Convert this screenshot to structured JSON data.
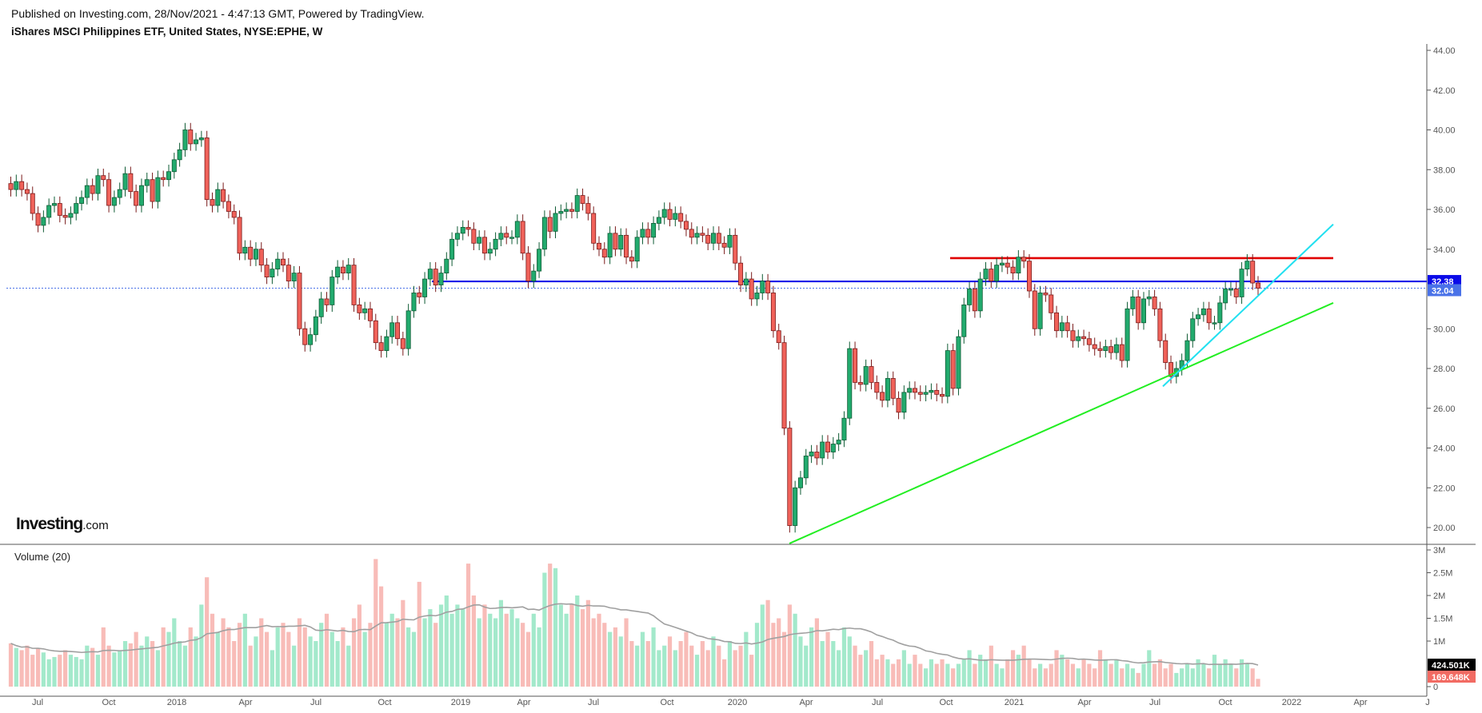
{
  "header": {
    "published": "Published on Investing.com, 28/Nov/2021 - 4:47:13 GMT, Powered by TradingView.",
    "title": "iShares MSCI Philippines ETF, United States, NYSE:EPHE, W"
  },
  "logo": {
    "main": "Investing",
    "suffix": ".com"
  },
  "volume_label": "Volume (20)",
  "colors": {
    "up": "#22ab6e",
    "down": "#f0625a",
    "vol_up": "#a3e9cb",
    "vol_down": "#f8bcb8",
    "ma": "#a0a0a0",
    "resistance": "#e00000",
    "support_level": "#1010e8",
    "trend_long": "#22ee22",
    "trend_short": "#22e0f0",
    "last_price": "#4a72e8"
  },
  "chart_data": [
    {
      "type": "candlestick",
      "title": "iShares MSCI Philippines ETF, United States, NYSE:EPHE, W",
      "ylim": [
        19,
        45
      ],
      "y_ticks": [
        "44.00",
        "42.00",
        "40.00",
        "38.00",
        "36.00",
        "34.00",
        "30.00",
        "28.00",
        "26.00",
        "24.00",
        "22.00",
        "20.00"
      ],
      "x_ticks": [
        "Jul",
        "Oct",
        "2018",
        "Apr",
        "Jul",
        "Oct",
        "2019",
        "Apr",
        "Jul",
        "Oct",
        "2020",
        "Apr",
        "Jul",
        "Oct",
        "2021",
        "Apr",
        "Jul",
        "Oct",
        "2022",
        "Apr",
        "J"
      ],
      "close": [
        37.0,
        37.4,
        37.0,
        36.8,
        35.8,
        35.2,
        35.6,
        36.2,
        36.3,
        35.7,
        35.6,
        35.8,
        36.3,
        36.6,
        37.2,
        36.8,
        37.7,
        37.5,
        36.2,
        36.6,
        37.0,
        37.8,
        36.9,
        36.2,
        37.2,
        37.5,
        36.4,
        37.6,
        37.5,
        37.9,
        38.5,
        39.0,
        40.0,
        39.3,
        39.5,
        39.6,
        36.5,
        36.2,
        37.0,
        36.4,
        35.9,
        35.6,
        33.8,
        34.1,
        33.5,
        34.0,
        33.2,
        32.6,
        33.0,
        33.5,
        33.2,
        32.4,
        32.8,
        30.0,
        29.2,
        29.7,
        30.6,
        31.5,
        31.2,
        32.6,
        33.1,
        32.8,
        33.2,
        31.2,
        30.8,
        31.0,
        30.4,
        29.3,
        28.9,
        29.6,
        30.3,
        29.5,
        29.0,
        30.9,
        31.8,
        31.6,
        32.5,
        33.0,
        32.2,
        32.8,
        33.5,
        34.5,
        34.8,
        35.1,
        35.0,
        34.3,
        34.6,
        33.8,
        34.0,
        34.5,
        34.8,
        34.6,
        34.6,
        35.4,
        33.8,
        32.4,
        32.9,
        34.0,
        35.6,
        34.9,
        35.8,
        35.9,
        36.0,
        35.9,
        36.7,
        36.3,
        35.8,
        34.3,
        34.0,
        33.6,
        34.8,
        34.0,
        34.7,
        33.6,
        33.4,
        34.6,
        35.0,
        34.6,
        35.3,
        35.6,
        36.0,
        35.5,
        35.8,
        35.4,
        35.0,
        34.6,
        34.8,
        34.7,
        34.3,
        34.8,
        34.3,
        34.1,
        34.7,
        33.3,
        32.2,
        32.5,
        31.5,
        31.8,
        32.4,
        31.8,
        29.9,
        29.3,
        25.0,
        20.1,
        22.0,
        22.5,
        23.6,
        23.8,
        23.5,
        24.3,
        23.8,
        24.2,
        24.4,
        25.5,
        29.0,
        27.3,
        27.2,
        28.1,
        27.3,
        26.8,
        26.4,
        27.5,
        26.5,
        25.8,
        26.8,
        27.0,
        26.8,
        26.7,
        26.8,
        26.9,
        26.7,
        26.6,
        28.9,
        27.0,
        29.6,
        31.2,
        32.0,
        30.9,
        32.5,
        33.0,
        32.4,
        33.2,
        33.3,
        33.1,
        32.8,
        33.6,
        33.4,
        31.9,
        30.0,
        31.8,
        31.7,
        30.8,
        29.9,
        30.3,
        29.9,
        29.4,
        29.6,
        29.5,
        29.2,
        29.0,
        28.9,
        29.1,
        28.8,
        29.2,
        28.4,
        31.0,
        31.6,
        30.3,
        31.5,
        31.6,
        31.0,
        29.4,
        28.3,
        27.6,
        28.0,
        28.4,
        29.4,
        30.5,
        30.7,
        31.0,
        30.3,
        30.3,
        31.3,
        32.0,
        32.0,
        31.6,
        33.0,
        33.4,
        32.3,
        32.04
      ],
      "price_tags": {
        "level": "32.38",
        "last": "32.04"
      },
      "lines": {
        "resistance": 33.55,
        "support_level": 32.38,
        "last_price": 32.04,
        "trend_long": {
          "from": 19.2,
          "to": 31.3
        },
        "trend_short": {
          "from": 27.1,
          "to": 35.25
        }
      }
    },
    {
      "type": "bar",
      "title": "Volume (20)",
      "unit": "M",
      "ylim": [
        0,
        3
      ],
      "y_ticks": [
        "3M",
        "2.5M",
        "2M",
        "1.5M",
        "1M",
        "0"
      ],
      "ma_period": 20,
      "tags": {
        "ma": "424.501K",
        "last": "169.648K"
      },
      "values": [
        0.95,
        0.85,
        0.8,
        0.9,
        0.7,
        0.85,
        0.75,
        0.6,
        0.65,
        0.7,
        0.8,
        0.7,
        0.65,
        0.6,
        0.9,
        0.85,
        0.7,
        1.3,
        0.9,
        0.75,
        0.8,
        1.0,
        0.95,
        1.2,
        0.9,
        1.1,
        1.0,
        0.8,
        1.3,
        1.2,
        1.5,
        1.0,
        0.9,
        1.3,
        1.1,
        1.8,
        2.4,
        1.6,
        1.2,
        1.5,
        1.3,
        1.0,
        1.4,
        1.6,
        0.9,
        1.1,
        1.5,
        1.2,
        0.8,
        1.3,
        1.4,
        1.2,
        0.9,
        1.5,
        1.3,
        1.1,
        1.0,
        1.4,
        1.6,
        1.2,
        1.0,
        1.3,
        0.9,
        1.5,
        1.8,
        1.2,
        1.4,
        2.8,
        2.2,
        1.4,
        1.6,
        1.5,
        1.9,
        1.3,
        1.2,
        2.3,
        1.5,
        1.7,
        1.4,
        1.8,
        2.0,
        1.6,
        1.8,
        1.7,
        2.7,
        2.0,
        1.5,
        1.8,
        1.6,
        1.5,
        1.9,
        1.6,
        1.7,
        1.5,
        1.4,
        1.2,
        1.6,
        1.3,
        2.5,
        2.7,
        2.6,
        1.8,
        1.6,
        1.8,
        2.0,
        1.7,
        1.9,
        1.5,
        1.6,
        1.4,
        1.2,
        1.3,
        1.1,
        1.5,
        1.0,
        0.9,
        1.2,
        1.0,
        1.3,
        0.8,
        0.9,
        1.1,
        0.8,
        1.0,
        1.2,
        0.9,
        0.7,
        1.0,
        0.8,
        1.1,
        0.9,
        0.6,
        1.0,
        0.8,
        0.9,
        1.2,
        0.7,
        1.4,
        1.8,
        1.9,
        1.4,
        1.5,
        1.2,
        1.8,
        1.6,
        1.1,
        0.9,
        1.3,
        1.5,
        1.0,
        1.2,
        1.0,
        0.8,
        1.3,
        1.1,
        0.9,
        0.7,
        0.8,
        1.0,
        0.6,
        0.7,
        0.6,
        0.5,
        0.6,
        0.8,
        0.5,
        0.7,
        0.5,
        0.4,
        0.6,
        0.5,
        0.6,
        0.5,
        0.4,
        0.5,
        0.6,
        0.8,
        0.5,
        0.7,
        0.6,
        0.9,
        0.5,
        0.4,
        0.6,
        0.8,
        0.7,
        0.9,
        0.6,
        0.4,
        0.5,
        0.4,
        0.5,
        0.8,
        0.7,
        0.6,
        0.5,
        0.4,
        0.6,
        0.5,
        0.4,
        0.8,
        0.6,
        0.5,
        0.6,
        0.4,
        0.5,
        0.4,
        0.3,
        0.5,
        0.8,
        0.5,
        0.6,
        0.4,
        0.5,
        0.3,
        0.4,
        0.5,
        0.4,
        0.6,
        0.5,
        0.4,
        0.7,
        0.5,
        0.6,
        0.5,
        0.4,
        0.6,
        0.5,
        0.4,
        0.17
      ]
    }
  ]
}
